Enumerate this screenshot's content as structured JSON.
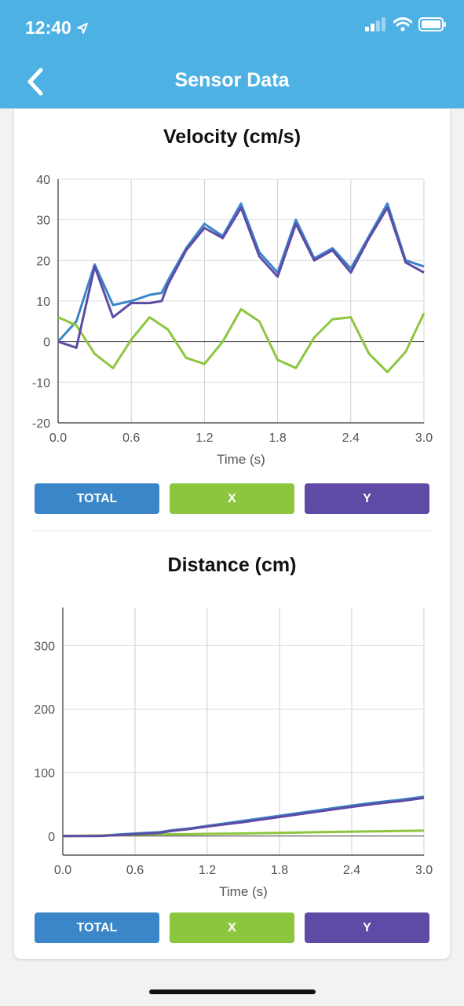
{
  "status": {
    "time": "12:40"
  },
  "nav": {
    "title": "Sensor Data"
  },
  "colors": {
    "total": "#3a86c8",
    "x": "#8cc63f",
    "y": "#5f4aa5",
    "header": "#4eb1e3"
  },
  "buttons": {
    "total": "TOTAL",
    "x": "X",
    "y": "Y"
  },
  "velocity_chart": {
    "title": "Velocity (cm/s)",
    "xlabel": "Time (s)",
    "type": "line",
    "xticks": [
      "0.0",
      "0.6",
      "1.2",
      "1.8",
      "2.4",
      "3.0"
    ],
    "yticks": [
      "40",
      "30",
      "20",
      "10",
      "0",
      "-10",
      "-20"
    ]
  },
  "distance_chart": {
    "title": "Distance (cm)",
    "xlabel": "Time (s)",
    "type": "line",
    "xticks": [
      "0.0",
      "0.6",
      "1.2",
      "1.8",
      "2.4",
      "3.0"
    ],
    "yticks": [
      "300",
      "200",
      "100",
      "0"
    ]
  },
  "chart_data": [
    {
      "type": "line",
      "title": "Velocity (cm/s)",
      "xlabel": "Time (s)",
      "ylabel": "",
      "xlim": [
        0,
        3.0
      ],
      "ylim": [
        -20,
        40
      ],
      "grid": true,
      "x": [
        0.0,
        0.15,
        0.3,
        0.45,
        0.6,
        0.75,
        0.85,
        0.9,
        1.05,
        1.2,
        1.35,
        1.5,
        1.65,
        1.8,
        1.95,
        2.1,
        2.25,
        2.4,
        2.55,
        2.7,
        2.85,
        3.0
      ],
      "series": [
        {
          "name": "TOTAL",
          "color": "#3a86c8",
          "values": [
            0,
            5,
            19,
            9,
            10,
            11.5,
            12,
            15,
            23,
            29,
            26,
            34,
            22,
            17,
            30,
            20.5,
            23,
            18,
            26,
            34,
            20,
            18.5
          ]
        },
        {
          "name": "X",
          "color": "#8cc63f",
          "values": [
            6,
            4,
            -3,
            -6.5,
            0.5,
            6,
            4,
            3,
            -4,
            -5.5,
            0,
            8,
            5,
            -4.5,
            -6.5,
            1,
            5.5,
            6,
            -3,
            -7.5,
            -2.5,
            7
          ]
        },
        {
          "name": "Y",
          "color": "#5f4aa5",
          "values": [
            0,
            -1.5,
            18.5,
            6,
            9.5,
            9.5,
            10,
            14,
            22.5,
            28,
            25.5,
            33,
            21,
            16,
            29,
            20,
            22.5,
            17,
            25.5,
            33,
            19.5,
            17
          ]
        }
      ]
    },
    {
      "type": "line",
      "title": "Distance (cm)",
      "xlabel": "Time (s)",
      "ylabel": "",
      "xlim": [
        0,
        3.0
      ],
      "ylim": [
        -30,
        360
      ],
      "grid": true,
      "x": [
        0.0,
        0.3,
        0.6,
        0.8,
        0.9,
        1.05,
        1.2,
        1.5,
        1.8,
        2.1,
        2.4,
        2.6,
        2.8,
        3.0
      ],
      "series": [
        {
          "name": "TOTAL",
          "color": "#3a86c8",
          "values": [
            0,
            0.5,
            4,
            6,
            9,
            12,
            16,
            24,
            32,
            40,
            48,
            53,
            57,
            62
          ]
        },
        {
          "name": "X",
          "color": "#8cc63f",
          "values": [
            0,
            1,
            2,
            3,
            3,
            3,
            3.5,
            4,
            5,
            6,
            7,
            7.5,
            8,
            8.5
          ]
        },
        {
          "name": "Y",
          "color": "#5f4aa5",
          "values": [
            0,
            0,
            3,
            5,
            8,
            11,
            15,
            22,
            30,
            38,
            46,
            51,
            55,
            60
          ]
        }
      ]
    }
  ]
}
